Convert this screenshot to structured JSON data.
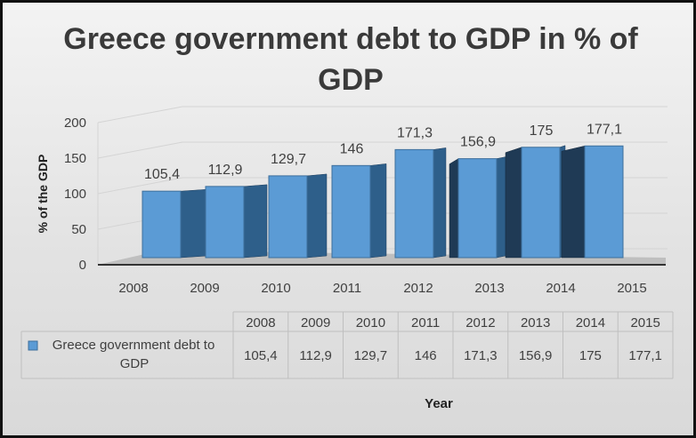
{
  "title": "Greece government debt to GDP in % of GDP",
  "chart_data": {
    "type": "bar",
    "title": "Greece government debt to GDP in % of GDP",
    "xlabel": "Year",
    "ylabel": "% of the GDP",
    "ylim": [
      0,
      200
    ],
    "yticks": [
      0,
      50,
      100,
      150,
      200
    ],
    "categories": [
      "2008",
      "2009",
      "2010",
      "2011",
      "2012",
      "2013",
      "2014",
      "2015"
    ],
    "series": [
      {
        "name": "Greece government debt to GDP",
        "values": [
          105.4,
          112.9,
          129.7,
          146,
          171.3,
          156.9,
          175,
          177.1
        ],
        "labels": [
          "105,4",
          "112,9",
          "129,7",
          "146",
          "171,3",
          "156,9",
          "175",
          "177,1"
        ]
      }
    ],
    "data_table": true,
    "legend": "data-table",
    "colors": {
      "bar_front": "#5b9bd5",
      "bar_side": "#2e5f8a",
      "bar_top": "#9dc3e6",
      "floor": "#bfbfbf"
    }
  }
}
